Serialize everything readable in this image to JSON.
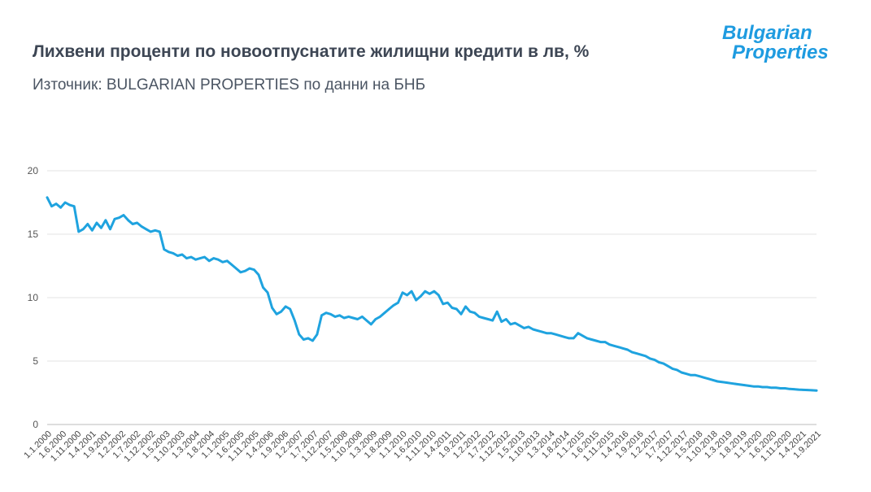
{
  "header": {
    "title": "Лихвени проценти по новоотпуснатите жилищни кредити в лв, %",
    "subtitle": "Източник: BULGARIAN PROPERTIES по данни на БНБ"
  },
  "logo": {
    "line1": "Bulgarian",
    "line2": "Properties",
    "color": "#1e9be0"
  },
  "colors": {
    "line": "#1fa3df",
    "grid": "#e3e3e3",
    "axis": "#bdbdbd"
  },
  "chart_data": {
    "type": "line",
    "title": "",
    "xlabel": "",
    "ylabel": "",
    "ylim": [
      0,
      20
    ],
    "yticks": [
      0,
      5,
      10,
      15,
      20
    ],
    "grid": true,
    "xticks": [
      "1.1.2000",
      "1.6.2000",
      "1.11.2000",
      "1.4.2001",
      "1.9.2001",
      "1.2.2002",
      "1.7.2002",
      "1.12.2002",
      "1.5.2003",
      "1.10.2003",
      "1.3.2004",
      "1.8.2004",
      "1.1.2005",
      "1.6.2005",
      "1.11.2005",
      "1.4.2006",
      "1.9.2006",
      "1.2.2007",
      "1.7.2007",
      "1.12.2007",
      "1.5.2008",
      "1.10.2008",
      "1.3.2009",
      "1.8.2009",
      "1.1.2010",
      "1.6.2010",
      "1.11.2010",
      "1.4.2011",
      "1.9.2011",
      "1.2.2012",
      "1.7.2012",
      "1.12.2012",
      "1.5.2013",
      "1.10.2013",
      "1.3.2014",
      "1.8.2014",
      "1.1.2015",
      "1.6.2015",
      "1.11.2015",
      "1.4.2016",
      "1.9.2016",
      "1.2.2017",
      "1.7.2017",
      "1.12.2017",
      "1.5.2018",
      "1.10.2018",
      "1.3.2019",
      "1.8.2019",
      "1.1.2020",
      "1.6.2020",
      "1.11.2020",
      "1.4.2021",
      "1.9.2021"
    ],
    "series": [
      {
        "values": [
          17.9,
          17.2,
          17.4,
          17.1,
          17.5,
          17.3,
          17.2,
          15.2,
          15.4,
          15.8,
          15.3,
          15.9,
          15.5,
          16.1,
          15.4,
          16.2,
          16.3,
          16.5,
          16.1,
          15.8,
          15.9,
          15.6,
          15.4,
          15.2,
          15.3,
          15.2,
          13.8,
          13.6,
          13.5,
          13.3,
          13.4,
          13.1,
          13.2,
          13.0,
          13.1,
          13.2,
          12.9,
          13.1,
          13.0,
          12.8,
          12.9,
          12.6,
          12.3,
          12.0,
          12.1,
          12.3,
          12.2,
          11.8,
          10.8,
          10.4,
          9.2,
          8.7,
          8.9,
          9.3,
          9.1,
          8.2,
          7.1,
          6.7,
          6.8,
          6.6,
          7.1,
          8.6,
          8.8,
          8.7,
          8.5,
          8.6,
          8.4,
          8.5,
          8.4,
          8.3,
          8.5,
          8.2,
          7.9,
          8.3,
          8.5,
          8.8,
          9.1,
          9.4,
          9.6,
          10.4,
          10.2,
          10.5,
          9.8,
          10.1,
          10.5,
          10.3,
          10.5,
          10.2,
          9.5,
          9.6,
          9.2,
          9.1,
          8.7,
          9.3,
          8.9,
          8.8,
          8.5,
          8.4,
          8.3,
          8.2,
          8.9,
          8.1,
          8.3,
          7.9,
          8.0,
          7.8,
          7.6,
          7.7,
          7.5,
          7.4,
          7.3,
          7.2,
          7.2,
          7.1,
          7.0,
          6.9,
          6.8,
          6.8,
          7.2,
          7.0,
          6.8,
          6.7,
          6.6,
          6.5,
          6.5,
          6.3,
          6.2,
          6.1,
          6.0,
          5.9,
          5.7,
          5.6,
          5.5,
          5.4,
          5.2,
          5.1,
          4.9,
          4.8,
          4.6,
          4.4,
          4.3,
          4.1,
          4.0,
          3.9,
          3.9,
          3.8,
          3.7,
          3.6,
          3.5,
          3.4,
          3.35,
          3.3,
          3.25,
          3.2,
          3.15,
          3.1,
          3.05,
          3.0,
          3.0,
          2.95,
          2.95,
          2.9,
          2.9,
          2.85,
          2.85,
          2.8,
          2.78,
          2.75,
          2.73,
          2.72,
          2.7,
          2.68
        ]
      }
    ]
  }
}
